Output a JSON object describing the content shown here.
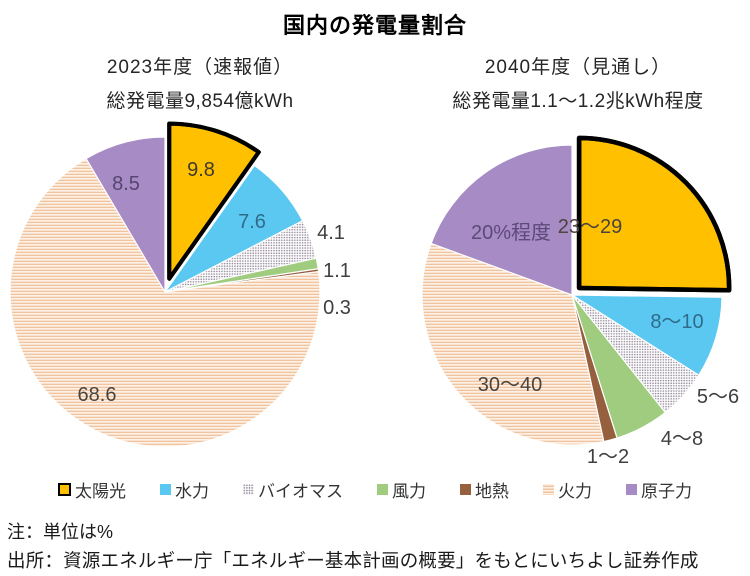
{
  "title": "国内の発電量割合",
  "note": "注：単位は%",
  "source": "出所：資源エネルギー庁「エネルギー基本計画の概要」をもとにいちよし証券作成",
  "palette": {
    "solar": "#FFC000",
    "solar_border": "#000000",
    "hydro": "#5BC8F2",
    "wind": "#9FCC7E",
    "geothermal": "#96603E",
    "nuclear": "#A78BC4",
    "thermal_bg": "#FDF0E4",
    "thermal_stripe": "#F1C4A0",
    "biomass_bg": "#FDFDFD",
    "biomass_dot": "#9A8FA0",
    "label_dark": "#3F3F3F"
  },
  "legend": {
    "items": [
      {
        "key": "solar",
        "label": "太陽光"
      },
      {
        "key": "hydro",
        "label": "水力"
      },
      {
        "key": "biomass",
        "label": "バイオマス"
      },
      {
        "key": "wind",
        "label": "風力"
      },
      {
        "key": "geothermal",
        "label": "地熱"
      },
      {
        "key": "thermal",
        "label": "火力"
      },
      {
        "key": "nuclear",
        "label": "原子力"
      }
    ]
  },
  "chart_data": [
    {
      "type": "pie",
      "title": "2023年度（速報値）",
      "subtitle": "総発電量9,854億kWh",
      "unit": "%",
      "start_angle": 0,
      "direction": "clockwise",
      "slices": [
        {
          "key": "solar",
          "name": "太陽光",
          "value": 9.8,
          "label": "9.8",
          "exploded": true,
          "label_inside": true
        },
        {
          "key": "hydro",
          "name": "水力",
          "value": 7.6,
          "label": "7.6",
          "exploded": false,
          "label_inside": true
        },
        {
          "key": "biomass",
          "name": "バイオマス",
          "value": 4.1,
          "label": "4.1",
          "exploded": false,
          "label_inside": false
        },
        {
          "key": "wind",
          "name": "風力",
          "value": 1.1,
          "label": "1.1",
          "exploded": false,
          "label_inside": false
        },
        {
          "key": "geothermal",
          "name": "地熱",
          "value": 0.3,
          "label": "0.3",
          "exploded": false,
          "label_inside": false
        },
        {
          "key": "thermal",
          "name": "火力",
          "value": 68.6,
          "label": "68.6",
          "exploded": false,
          "label_inside": true
        },
        {
          "key": "nuclear",
          "name": "原子力",
          "value": 8.5,
          "label": "8.5",
          "exploded": false,
          "label_inside": true
        }
      ]
    },
    {
      "type": "pie",
      "title": "2040年度（見通し）",
      "subtitle": "総発電量1.1～1.2兆kWh程度",
      "unit": "%",
      "start_angle": 0,
      "direction": "clockwise",
      "slices": [
        {
          "key": "solar",
          "name": "太陽光",
          "range": [
            23,
            29
          ],
          "render_value": 26,
          "label": "23～29",
          "exploded": true,
          "label_inside": true
        },
        {
          "key": "hydro",
          "name": "水力",
          "range": [
            8,
            10
          ],
          "render_value": 9,
          "label": "8～10",
          "exploded": false,
          "label_inside": true
        },
        {
          "key": "biomass",
          "name": "バイオマス",
          "range": [
            5,
            6
          ],
          "render_value": 5.5,
          "label": "5～6",
          "exploded": false,
          "label_inside": false
        },
        {
          "key": "wind",
          "name": "風力",
          "range": [
            4,
            8
          ],
          "render_value": 6,
          "label": "4～8",
          "exploded": false,
          "label_inside": false
        },
        {
          "key": "geothermal",
          "name": "地熱",
          "range": [
            1,
            2
          ],
          "render_value": 1.5,
          "label": "1～2",
          "exploded": false,
          "label_inside": false
        },
        {
          "key": "thermal",
          "name": "火力",
          "range": [
            30,
            40
          ],
          "render_value": 35,
          "label": "30～40",
          "exploded": false,
          "label_inside": true
        },
        {
          "key": "nuclear",
          "name": "原子力",
          "range": [
            20,
            20
          ],
          "render_value": 20,
          "label": "20%程度",
          "exploded": false,
          "label_inside": true
        }
      ]
    }
  ]
}
